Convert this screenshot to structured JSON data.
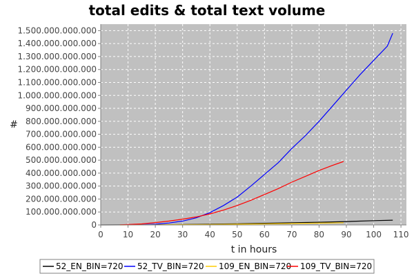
{
  "chart_data": {
    "type": "line",
    "title": "total edits & total text volume",
    "xlabel": "t in hours",
    "ylabel": "#",
    "xlim": [
      0,
      112
    ],
    "ylim": [
      0,
      1550000000000
    ],
    "xticks": [
      0,
      10,
      20,
      30,
      40,
      50,
      60,
      70,
      80,
      90,
      100,
      110
    ],
    "xtick_labels": [
      "0",
      "10",
      "20",
      "30",
      "40",
      "50",
      "60",
      "70",
      "80",
      "90",
      "100",
      "110"
    ],
    "yticks": [
      0,
      100000000000,
      200000000000,
      300000000000,
      400000000000,
      500000000000,
      600000000000,
      700000000000,
      800000000000,
      900000000000,
      1000000000000,
      1100000000000,
      1200000000000,
      1300000000000,
      1400000000000,
      1500000000000
    ],
    "ytick_labels": [
      "0",
      "100.000.000.000",
      "200.000.000.000",
      "300.000.000.000",
      "400.000.000.000",
      "500.000.000.000",
      "600.000.000.000",
      "700.000.000.000",
      "800.000.000.000",
      "900.000.000.000",
      "1.000.000.000.000",
      "1.100.000.000.000",
      "1.200.000.000.000",
      "1.300.000.000.000",
      "1.400.000.000.000",
      "1.500.000.000.000"
    ],
    "grid": true,
    "legend_position": "bottom",
    "background": "#c0c0c0",
    "series": [
      {
        "name": "52_EN_BIN=720",
        "color": "#000000",
        "x": [
          0,
          10,
          20,
          30,
          40,
          50,
          60,
          70,
          80,
          90,
          100,
          107
        ],
        "y": [
          0,
          500000000,
          1500000000,
          3000000000,
          6000000000,
          9000000000,
          13000000000,
          17000000000,
          21000000000,
          26000000000,
          33000000000,
          37000000000
        ]
      },
      {
        "name": "52_TV_BIN=720",
        "color": "#0000ff",
        "x": [
          15,
          20,
          25,
          30,
          35,
          40,
          45,
          50,
          55,
          60,
          65,
          70,
          75,
          80,
          85,
          90,
          95,
          100,
          105,
          107
        ],
        "y": [
          2000000000,
          6000000000,
          15000000000,
          30000000000,
          55000000000,
          95000000000,
          150000000000,
          215000000000,
          300000000000,
          390000000000,
          480000000000,
          590000000000,
          690000000000,
          800000000000,
          920000000000,
          1040000000000,
          1160000000000,
          1270000000000,
          1380000000000,
          1480000000000
        ]
      },
      {
        "name": "109_EN_BIN=720",
        "color": "#ffcc00",
        "x": [
          7,
          20,
          40,
          60,
          80,
          89
        ],
        "y": [
          0,
          1000000000,
          3000000000,
          8000000000,
          14000000000,
          17000000000
        ]
      },
      {
        "name": "109_TV_BIN=720",
        "color": "#ff0000",
        "x": [
          7,
          10,
          15,
          20,
          25,
          30,
          35,
          40,
          45,
          50,
          55,
          60,
          65,
          70,
          75,
          80,
          85,
          89
        ],
        "y": [
          1000000000,
          3000000000,
          8000000000,
          18000000000,
          30000000000,
          45000000000,
          62000000000,
          85000000000,
          115000000000,
          150000000000,
          190000000000,
          235000000000,
          280000000000,
          330000000000,
          375000000000,
          420000000000,
          460000000000,
          490000000000
        ]
      }
    ]
  }
}
